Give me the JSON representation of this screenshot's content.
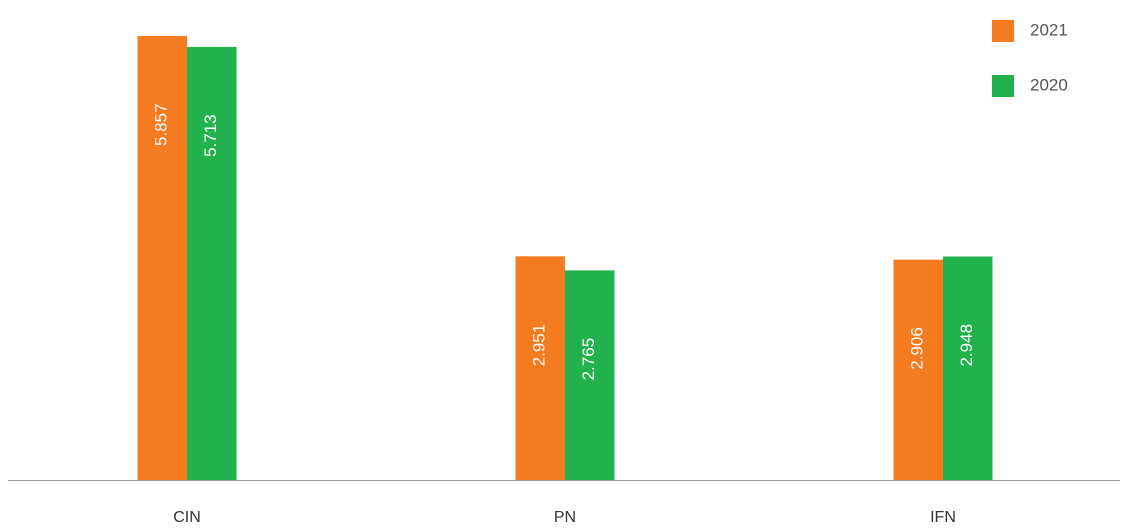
{
  "chart_data": {
    "type": "bar",
    "categories": [
      "CIN",
      "PN",
      "IFN"
    ],
    "series": [
      {
        "name": "2021",
        "color": "#f47b20",
        "values": [
          5.857,
          2.951,
          2.906
        ]
      },
      {
        "name": "2020",
        "color": "#22b14c",
        "values": [
          5.713,
          2.765,
          2.948
        ]
      }
    ]
  }
}
